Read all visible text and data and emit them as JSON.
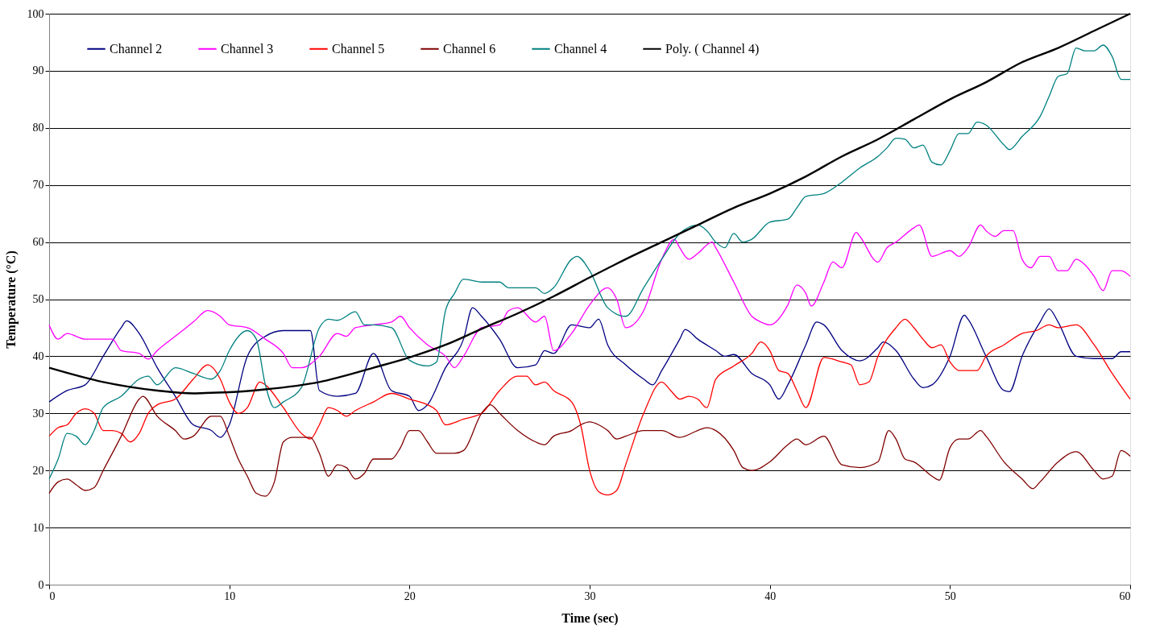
{
  "chart_data": {
    "type": "line",
    "xlabel": "Time (sec)",
    "ylabel": "Temperature (°C)",
    "xlim": [
      0,
      60
    ],
    "xticks": [
      0,
      10,
      20,
      30,
      40,
      50,
      60
    ],
    "ylim": [
      0,
      100
    ],
    "yticks": [
      0,
      10,
      20,
      30,
      40,
      50,
      60,
      70,
      80,
      90,
      100
    ],
    "grid": "y",
    "legend": "top",
    "line_style": "solid",
    "marker": "none",
    "series": [
      {
        "name": "Channel 2",
        "color": "#000080",
        "x": [
          0,
          1,
          2,
          3,
          4,
          4.3,
          5,
          6,
          7,
          8,
          9,
          9.5,
          10,
          11,
          12,
          13,
          14,
          14.5,
          15,
          16,
          17,
          18,
          19,
          20,
          20.5,
          21,
          22,
          23,
          23.5,
          24,
          25,
          26,
          27,
          27.5,
          28,
          29,
          30,
          30.5,
          31,
          32,
          33,
          33.5,
          34,
          35,
          35.3,
          36,
          37,
          37.5,
          38,
          39,
          40,
          40.5,
          41,
          42,
          42.6,
          43,
          44,
          45,
          46,
          46.3,
          47,
          48,
          48.5,
          49,
          50,
          50.8,
          51,
          52,
          53,
          53.3,
          54,
          55,
          55.5,
          56,
          57,
          58,
          59,
          59.5,
          60
        ],
        "values": [
          32,
          34,
          35,
          40,
          45,
          46.2,
          44,
          38,
          33,
          28,
          27,
          25.8,
          28,
          40,
          43.5,
          44.5,
          44.5,
          44.5,
          34,
          33,
          33.5,
          40.5,
          34,
          33,
          30.5,
          31.5,
          38,
          43,
          48.5,
          47,
          43,
          38,
          38.5,
          41,
          40.5,
          45.5,
          45,
          46.5,
          42,
          38.5,
          36,
          35,
          37.5,
          43,
          44.7,
          43,
          41,
          40,
          40.3,
          37,
          35,
          32.5,
          35,
          42,
          46,
          45.5,
          41,
          39.2,
          41.5,
          42.5,
          41,
          36,
          34.5,
          35,
          40,
          47.2,
          46.5,
          40,
          34,
          33.8,
          40,
          46,
          48.3,
          46,
          40,
          39.6,
          39.6,
          40.8,
          40.8
        ]
      },
      {
        "name": "Channel 3",
        "color": "#ff00ff",
        "x": [
          0,
          0.5,
          1,
          2,
          3,
          3.5,
          4,
          5,
          5.5,
          6,
          7,
          8,
          8.8,
          9.5,
          10,
          11,
          12,
          13,
          13.5,
          14,
          15,
          16,
          16.5,
          17,
          18,
          19,
          19.5,
          20,
          21,
          22,
          22.5,
          23,
          24,
          25,
          25.5,
          26,
          27,
          27.5,
          28,
          29,
          30,
          31,
          31.5,
          32,
          33,
          34,
          34.7,
          35,
          35.5,
          36,
          36.8,
          37,
          38,
          39,
          39.5,
          40,
          41,
          41.5,
          42,
          42.3,
          43,
          43.5,
          44,
          44.8,
          45,
          46,
          46.5,
          47,
          48,
          48.3,
          49,
          50,
          50.5,
          51,
          51.7,
          52,
          52.5,
          53,
          53.5,
          54,
          54.5,
          55,
          55.5,
          56,
          56.5,
          57,
          57.5,
          58,
          58.5,
          59,
          59.5,
          60
        ],
        "values": [
          45.5,
          43,
          44,
          43,
          43,
          43,
          41,
          40.5,
          39.5,
          41,
          43.5,
          46,
          48,
          47,
          45.5,
          45,
          43,
          40.5,
          38,
          38,
          40,
          44,
          43.5,
          45,
          45.5,
          46,
          47,
          45,
          42,
          40,
          38,
          40,
          45,
          45.5,
          48,
          48.5,
          46,
          47,
          41,
          44,
          49,
          52,
          50,
          45,
          48,
          57,
          60.5,
          59,
          57,
          58,
          60,
          59,
          53,
          47,
          46,
          45.5,
          49,
          52.5,
          51,
          48.8,
          53,
          56.5,
          55.5,
          61.7,
          61,
          56.5,
          59,
          60,
          62.5,
          63,
          57.5,
          58.5,
          57.5,
          59,
          63,
          62,
          61,
          62,
          62,
          57,
          55.5,
          57.5,
          57.5,
          55,
          55,
          57,
          56,
          54,
          51.5,
          55,
          55,
          54
        ]
      },
      {
        "name": "Channel 5",
        "color": "#ff0000",
        "x": [
          0,
          0.5,
          1,
          1.5,
          2,
          2.5,
          3,
          3.5,
          4,
          4.5,
          5,
          5.5,
          6,
          7,
          8,
          8.8,
          9.5,
          10,
          10.5,
          11,
          11.7,
          12,
          13,
          14,
          14.5,
          15,
          15.5,
          16,
          16.5,
          17,
          18,
          19,
          20,
          21,
          21.5,
          22,
          23,
          24,
          25,
          26,
          26.5,
          27,
          27.5,
          28,
          29,
          29.5,
          30,
          30.5,
          31,
          31.5,
          32,
          33,
          34,
          34.5,
          35,
          35.5,
          36,
          36.5,
          37,
          38,
          39,
          39.5,
          40,
          40.5,
          41,
          41.5,
          42,
          43,
          44,
          44.5,
          45,
          45.5,
          46,
          47,
          47.5,
          48,
          48.5,
          49,
          49.5,
          50,
          50.5,
          51,
          51.5,
          52,
          53,
          54,
          54.8,
          55.5,
          56,
          57,
          58,
          59,
          60
        ],
        "values": [
          26,
          27.5,
          28,
          30,
          30.8,
          30,
          27,
          27,
          26.5,
          25,
          26.5,
          30,
          31.5,
          32.5,
          36,
          38.5,
          36,
          32,
          30,
          31,
          35.5,
          35,
          31,
          26.5,
          25.5,
          28,
          31,
          30.5,
          29.5,
          30.5,
          32,
          33.5,
          32.5,
          31.5,
          30.5,
          28,
          29,
          30,
          34,
          36.5,
          36.5,
          35,
          35.5,
          34,
          32,
          28,
          20,
          16.3,
          15.7,
          16.5,
          21,
          30,
          35.5,
          34,
          32.5,
          33,
          32.5,
          31,
          36,
          38.3,
          40.5,
          42.5,
          41,
          37.5,
          37,
          34,
          31,
          39.8,
          39,
          38.5,
          35,
          35.5,
          40,
          45,
          46.5,
          45,
          43,
          41.5,
          42,
          39,
          37.5,
          37.5,
          37.5,
          40,
          42,
          44,
          44.5,
          45.5,
          45,
          45.5,
          42,
          37,
          32.5
        ]
      },
      {
        "name": "Channel 6",
        "color": "#800000",
        "x": [
          0,
          0.5,
          1,
          1.5,
          2,
          2.5,
          3,
          4,
          5,
          5.2,
          6,
          7,
          7.5,
          8,
          9,
          9.5,
          10,
          10.5,
          11,
          11.5,
          12,
          12.5,
          13,
          13.5,
          14.5,
          15,
          15.5,
          16,
          16.5,
          17,
          17.5,
          18,
          18.5,
          19,
          19.5,
          20,
          20.5,
          21,
          21.5,
          22.5,
          23,
          24,
          24.5,
          25,
          26,
          27,
          27.5,
          28,
          29,
          29.5,
          30,
          30.5,
          31,
          31.5,
          32,
          33,
          34,
          35,
          36,
          36.5,
          37,
          38,
          38.5,
          39,
          40,
          41,
          41.5,
          42,
          43,
          44,
          45,
          46,
          46.6,
          47,
          47.5,
          48,
          49,
          49.4,
          50,
          50.5,
          51,
          51.7,
          52,
          53,
          54,
          54.6,
          55,
          56,
          57,
          58,
          58.5,
          59,
          59.5,
          60
        ],
        "values": [
          16,
          18,
          18.5,
          17.5,
          16.5,
          17,
          20,
          26,
          32.5,
          33,
          29.5,
          27,
          25.5,
          26,
          29.5,
          29.5,
          26,
          22,
          19,
          16,
          15.5,
          18,
          25,
          25.8,
          25.8,
          23,
          19,
          21,
          20.5,
          18.5,
          19.5,
          22,
          22,
          22,
          24,
          27,
          27,
          25,
          23,
          23,
          23.5,
          30,
          31.5,
          30,
          27,
          25,
          24.5,
          26,
          27,
          28,
          28.5,
          28,
          27,
          25.5,
          26,
          27,
          27,
          25.8,
          27,
          27.5,
          27,
          23.5,
          20.5,
          20,
          21.5,
          24.5,
          25.5,
          24.5,
          26,
          21,
          20.5,
          21.5,
          27,
          25.5,
          22,
          21.5,
          19,
          18.3,
          24,
          25.5,
          25.5,
          27,
          26,
          21.5,
          18.5,
          16.8,
          18,
          21.5,
          23.3,
          20,
          18.5,
          19,
          23.5,
          22.5
        ]
      },
      {
        "name": "Channel 4",
        "color": "#008080",
        "x": [
          0,
          0.5,
          1,
          1.5,
          2,
          2.5,
          3,
          4,
          5,
          5.5,
          6,
          7,
          8,
          9,
          9.5,
          10,
          11,
          11.5,
          12,
          12.5,
          13,
          14,
          15,
          15.5,
          16,
          17,
          17.5,
          18,
          19,
          20,
          21,
          21.5,
          22,
          22.5,
          23,
          24,
          25,
          25.5,
          27,
          27.5,
          28,
          29,
          29.3,
          30,
          31,
          32,
          33,
          34,
          35,
          36,
          36.5,
          37,
          37.5,
          38,
          38.5,
          39,
          40,
          41,
          41.5,
          42,
          43,
          44,
          45,
          46,
          46.5,
          47,
          47.5,
          48,
          48.5,
          49,
          49.5,
          50,
          50.5,
          51,
          51.5,
          52,
          53,
          53.3,
          54,
          55,
          55.5,
          56,
          56.5,
          57,
          57.5,
          58,
          58.5,
          59,
          59.5,
          60
        ],
        "values": [
          18.5,
          22,
          26.5,
          26,
          24.5,
          27,
          31,
          33,
          36,
          36.5,
          35,
          38,
          37,
          36,
          37.5,
          41,
          44.5,
          43,
          35,
          31,
          32,
          34.5,
          45,
          46.5,
          46.3,
          47.8,
          45.5,
          45.5,
          45,
          39.3,
          38.3,
          39,
          48,
          51,
          53.5,
          53,
          53,
          52,
          52,
          51,
          52,
          57,
          57.5,
          55,
          48.5,
          47,
          52,
          57,
          61.5,
          63,
          62,
          60,
          59,
          61.5,
          60,
          60.5,
          63.5,
          64,
          66,
          68,
          68.5,
          70.5,
          73,
          75,
          76.5,
          78.2,
          78,
          76.5,
          77,
          74,
          73.5,
          76,
          79,
          79,
          81,
          80.5,
          77,
          76.2,
          78.5,
          82,
          85.5,
          89,
          89.5,
          94,
          93.5,
          93.5,
          94.5,
          92.5,
          88.5,
          88.5
        ]
      },
      {
        "name": "Poly. (   Channel 4)",
        "color": "#000000",
        "x": [
          0,
          3,
          6,
          8,
          9,
          10,
          12,
          15,
          18,
          20,
          22,
          24,
          26,
          28,
          30,
          32,
          34,
          36,
          38,
          40,
          42,
          44,
          46,
          48,
          50,
          52,
          54,
          56,
          58,
          60
        ],
        "values": [
          38,
          35.5,
          34,
          33.5,
          33.6,
          33.7,
          34.2,
          35.5,
          38,
          39.8,
          42,
          44.8,
          47.5,
          50.5,
          53.8,
          57,
          60,
          63,
          66,
          68.5,
          71.5,
          75,
          78,
          81.5,
          85,
          88,
          91.5,
          94,
          97,
          100
        ]
      }
    ]
  }
}
